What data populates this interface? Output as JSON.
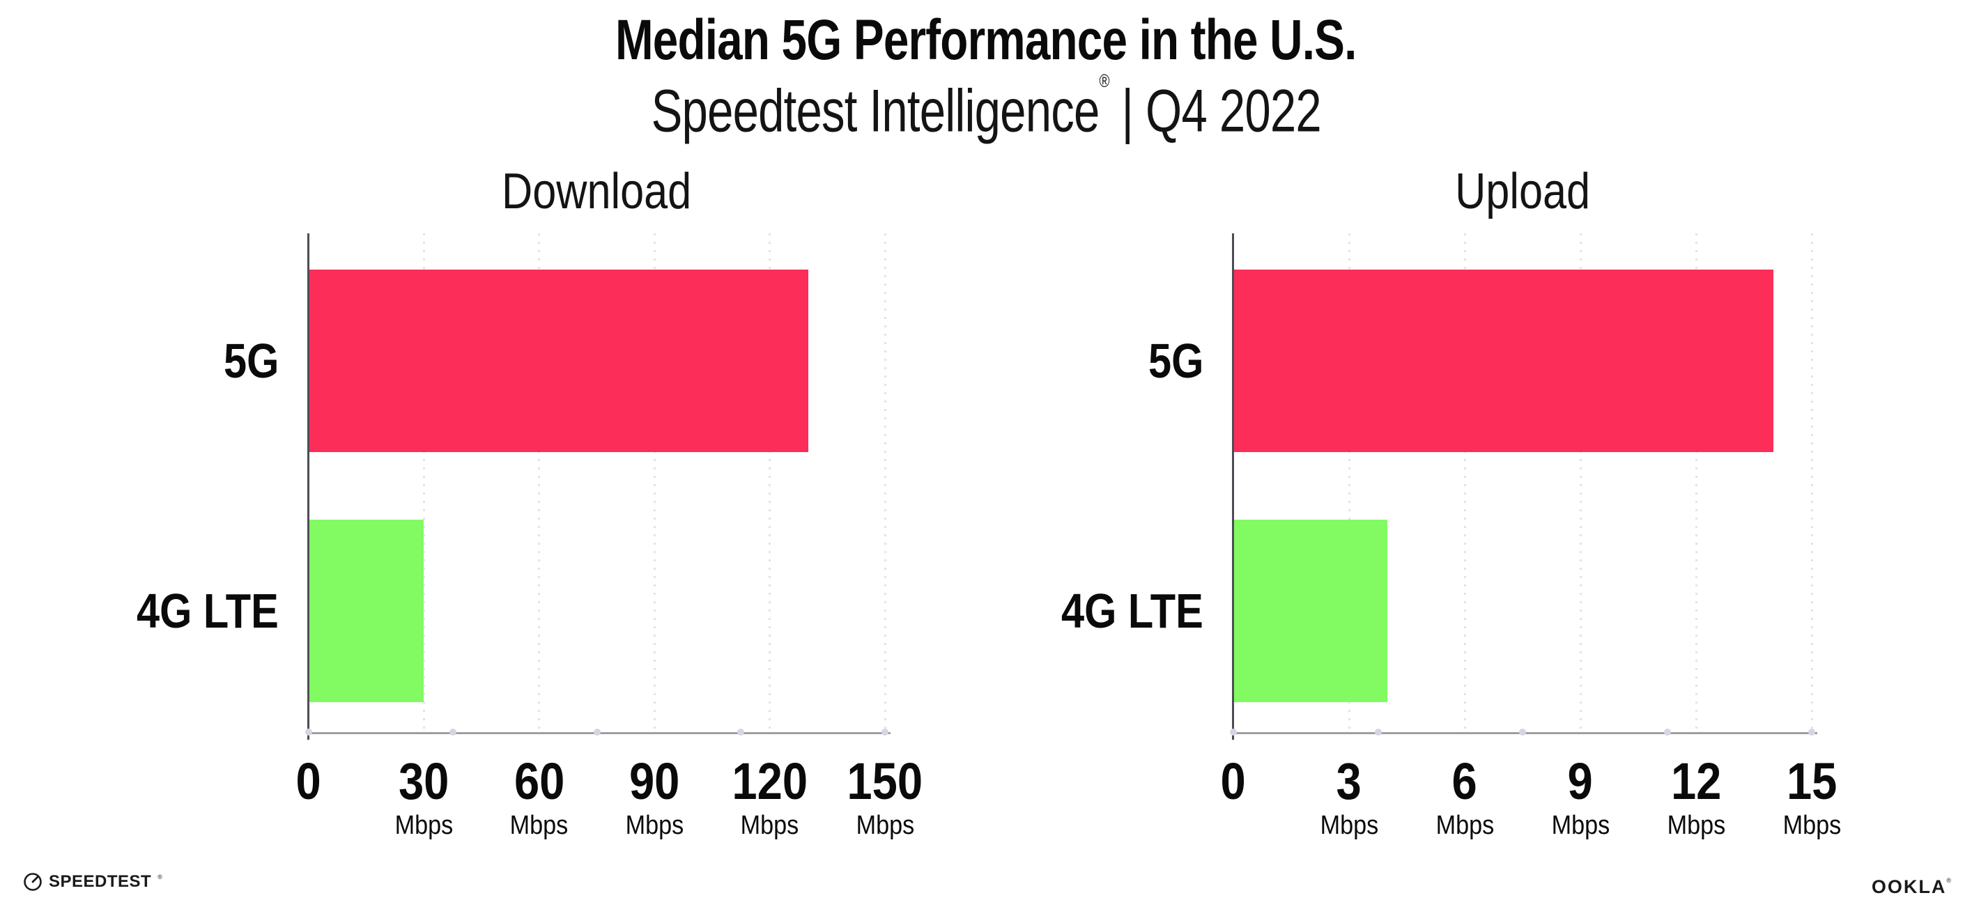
{
  "header": {
    "title": "Median 5G Performance in the U.S.",
    "subtitle_brand": "Speedtest Intelligence",
    "subtitle_reg": "®",
    "subtitle_rest": " | Q4 2022"
  },
  "footer": {
    "speedtest_wordmark": "SPEEDTEST",
    "speedtest_mark": "®",
    "ookla_wordmark": "OOKLA",
    "ookla_mark": "®"
  },
  "colors": {
    "bar_5g": "#FC2E59",
    "bar_4g": "#81FB61",
    "gridline": "#E2E2EC",
    "axis_left": "#4D4D55",
    "axis_bottom": "#9E9EA4",
    "axis_dot": "#D5D5E3",
    "text": "#0A0A0A",
    "background": "#FFFFFF"
  },
  "chart_data": [
    {
      "type": "bar",
      "orientation": "horizontal",
      "title": "Download",
      "categories": [
        "5G",
        "4G LTE"
      ],
      "values": [
        130,
        30
      ],
      "unit": "Mbps",
      "xlim": [
        0,
        150
      ],
      "xticks": [
        0,
        30,
        60,
        90,
        120,
        150
      ],
      "tick_unit_label": "Mbps",
      "grid": "dotted-vertical",
      "legend": "none",
      "bar_colors": [
        "#FC2E59",
        "#81FB61"
      ]
    },
    {
      "type": "bar",
      "orientation": "horizontal",
      "title": "Upload",
      "categories": [
        "5G",
        "4G LTE"
      ],
      "values": [
        14,
        4
      ],
      "unit": "Mbps",
      "xlim": [
        0,
        15
      ],
      "xticks": [
        0,
        3,
        6,
        9,
        12,
        15
      ],
      "tick_unit_label": "Mbps",
      "grid": "dotted-vertical",
      "legend": "none",
      "bar_colors": [
        "#FC2E59",
        "#81FB61"
      ]
    }
  ]
}
